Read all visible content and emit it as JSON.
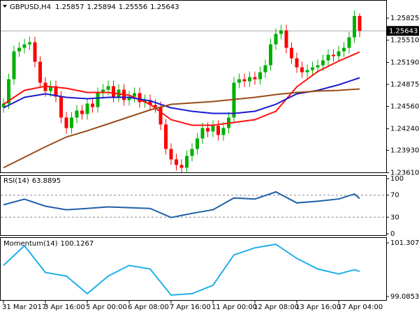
{
  "chart_data": [
    {
      "type": "candlestick",
      "title": "GBPUSD,H4",
      "categories": [
        "31 Mar 2017",
        null,
        null,
        null,
        null,
        null,
        null,
        null,
        "3 Apr 16:00",
        null,
        null,
        null,
        null,
        null,
        null,
        null,
        "5 Apr 00:00",
        null,
        null,
        null,
        null,
        null,
        null,
        null,
        "6 Apr 08:00",
        null,
        null,
        null,
        null,
        null,
        null,
        null,
        "7 Apr 16:00",
        null,
        null,
        null,
        null,
        null,
        null,
        null,
        "11 Apr 00:00",
        null,
        null,
        null,
        null,
        null,
        null,
        null,
        "12 Apr 08:00",
        null,
        null,
        null,
        null,
        null,
        null,
        null,
        "13 Apr 16:00",
        null,
        null,
        null,
        null,
        null,
        null,
        null,
        "17 Apr 04:00",
        null,
        null,
        null,
        null
      ],
      "open": [
        1.2455,
        1.246,
        1.2495,
        1.2535,
        1.254,
        1.2545,
        1.2548,
        1.252,
        1.249,
        1.2478,
        1.2485,
        1.247,
        1.244,
        1.2425,
        1.244,
        1.245,
        1.2445,
        1.246,
        1.2455,
        1.2475,
        1.248,
        1.2485,
        1.247,
        1.248,
        1.2465,
        1.247,
        1.2475,
        1.2462,
        1.2465,
        1.2458,
        1.2455,
        1.243,
        1.2395,
        1.238,
        1.2372,
        1.2368,
        1.2385,
        1.2395,
        1.241,
        1.2425,
        1.242,
        1.2428,
        1.2415,
        1.2425,
        1.244,
        1.249,
        1.2495,
        1.2492,
        1.2498,
        1.2495,
        1.2505,
        1.2515,
        1.2545,
        1.256,
        1.2565,
        1.254,
        1.2525,
        1.2512,
        1.2505,
        1.2508,
        1.2512,
        1.2515,
        1.2522,
        1.253,
        1.2528,
        1.2535,
        1.254,
        1.2555,
        1.25857
      ],
      "high": [
        1.2468,
        1.2503,
        1.2543,
        1.2548,
        1.2553,
        1.2556,
        1.2556,
        1.2528,
        1.2498,
        1.2493,
        1.2493,
        1.2478,
        1.2448,
        1.2448,
        1.2458,
        1.2458,
        1.2468,
        1.2468,
        1.2483,
        1.2488,
        1.2493,
        1.2493,
        1.2488,
        1.2488,
        1.2478,
        1.2483,
        1.2483,
        1.2473,
        1.2473,
        1.2466,
        1.2463,
        1.2438,
        1.2403,
        1.2388,
        1.238,
        1.2393,
        1.2403,
        1.2418,
        1.2433,
        1.2433,
        1.2436,
        1.2436,
        1.2433,
        1.2448,
        1.2498,
        1.2503,
        1.2503,
        1.2506,
        1.2506,
        1.2513,
        1.2523,
        1.2553,
        1.2568,
        1.2573,
        1.2573,
        1.2548,
        1.2533,
        1.252,
        1.2516,
        1.252,
        1.2523,
        1.253,
        1.2538,
        1.2538,
        1.2543,
        1.2548,
        1.2563,
        1.2594,
        1.25894
      ],
      "low": [
        1.2447,
        1.2452,
        1.2487,
        1.2527,
        1.2532,
        1.2537,
        1.2512,
        1.2482,
        1.247,
        1.247,
        1.2462,
        1.2432,
        1.2417,
        1.2417,
        1.2432,
        1.2437,
        1.2437,
        1.2447,
        1.2447,
        1.2467,
        1.2472,
        1.2462,
        1.2462,
        1.2457,
        1.2457,
        1.2462,
        1.2454,
        1.2454,
        1.245,
        1.2447,
        1.2422,
        1.2387,
        1.2372,
        1.2364,
        1.236,
        1.236,
        1.2377,
        1.2387,
        1.2402,
        1.2412,
        1.2412,
        1.2407,
        1.2407,
        1.2417,
        1.2432,
        1.2482,
        1.2484,
        1.2484,
        1.2487,
        1.2487,
        1.2497,
        1.2507,
        1.2537,
        1.2552,
        1.2532,
        1.2517,
        1.2504,
        1.2497,
        1.2497,
        1.25,
        1.2504,
        1.2507,
        1.2514,
        1.252,
        1.252,
        1.2527,
        1.2532,
        1.2547,
        1.25556
      ],
      "close": [
        1.246,
        1.2495,
        1.2535,
        1.254,
        1.2545,
        1.2548,
        1.252,
        1.249,
        1.2478,
        1.2485,
        1.247,
        1.244,
        1.2425,
        1.244,
        1.245,
        1.2445,
        1.246,
        1.2455,
        1.2475,
        1.248,
        1.2485,
        1.247,
        1.248,
        1.2465,
        1.247,
        1.2475,
        1.2462,
        1.2465,
        1.2458,
        1.2455,
        1.243,
        1.2395,
        1.238,
        1.2372,
        1.2368,
        1.2385,
        1.2395,
        1.241,
        1.2425,
        1.242,
        1.2428,
        1.2415,
        1.2425,
        1.244,
        1.249,
        1.2495,
        1.2492,
        1.2498,
        1.2495,
        1.2505,
        1.2515,
        1.2545,
        1.256,
        1.2565,
        1.254,
        1.2525,
        1.2512,
        1.2505,
        1.2508,
        1.2512,
        1.2515,
        1.2522,
        1.253,
        1.2528,
        1.2535,
        1.254,
        1.2555,
        1.25857,
        1.25643
      ],
      "up_color": "#00b000",
      "down_color": "#ff0000",
      "series": [
        {
          "color": "#ff1010",
          "x": [
            0,
            4,
            8,
            12,
            16,
            20,
            24,
            28,
            32,
            36,
            40,
            44,
            48,
            52,
            56,
            60,
            64,
            68
          ],
          "values": [
            1.2459,
            1.2479,
            1.2485,
            1.2482,
            1.2476,
            1.2476,
            1.2472,
            1.2459,
            1.2437,
            1.2429,
            1.2429,
            1.2433,
            1.2437,
            1.2449,
            1.2484,
            1.2506,
            1.2521,
            1.2534
          ]
        },
        {
          "color": "#1a1ad0",
          "x": [
            0,
            4,
            8,
            12,
            16,
            20,
            24,
            28,
            32,
            36,
            40,
            44,
            48,
            52,
            56,
            60,
            64,
            68
          ],
          "values": [
            1.2454,
            1.2469,
            1.2474,
            1.2469,
            1.2467,
            1.2469,
            1.2469,
            1.2464,
            1.2454,
            1.2449,
            1.2446,
            1.2446,
            1.2449,
            1.2459,
            1.2474,
            1.2479,
            1.2487,
            1.2497
          ]
        },
        {
          "color": "#9a4a1a",
          "x": [
            0,
            4,
            8,
            12,
            16,
            20,
            24,
            28,
            32,
            36,
            40,
            44,
            48,
            52,
            56,
            60,
            64,
            68
          ],
          "values": [
            1.2368,
            1.2383,
            1.2398,
            1.2412,
            1.2421,
            1.2431,
            1.2441,
            1.2451,
            1.2459,
            1.2461,
            1.2463,
            1.2466,
            1.2469,
            1.2473,
            1.2476,
            1.2478,
            1.2479,
            1.2481
          ]
        }
      ],
      "ylim": [
        1.23604,
        1.26076
      ],
      "yticks": [
        {
          "value": 1.2361,
          "label": "1.23610"
        },
        {
          "value": 1.2393,
          "label": "1.23930"
        },
        {
          "value": 1.2424,
          "label": "1.24240"
        },
        {
          "value": 1.2456,
          "label": "1.24560"
        },
        1.24875,
        {
          "value": 1.2519,
          "label": "1.25190"
        },
        {
          "value": 1.2551,
          "label": "1.25510"
        },
        1.25825
      ]
    },
    {
      "type": "line",
      "title": "RSI(14)",
      "series": [
        {
          "color": "#2060a8",
          "x": [
            0,
            4,
            8,
            12,
            16,
            20,
            24,
            28,
            32,
            36,
            40,
            44,
            48,
            52,
            56,
            60,
            64,
            67,
            68
          ],
          "values": [
            52.6,
            62.8,
            50,
            43.6,
            46,
            48.7,
            47.4,
            46,
            29.5,
            37,
            43.6,
            65,
            63,
            76,
            56,
            59,
            63,
            72,
            63.8895
          ]
        }
      ],
      "ylim": [
        -3.8,
        105.1
      ],
      "yticks": [
        0,
        30,
        70,
        100
      ],
      "levels": [
        30,
        70
      ]
    },
    {
      "type": "line",
      "title": "Momentum(14)",
      "series": [
        {
          "color": "#20b0e8",
          "x": [
            0,
            4,
            8,
            12,
            16,
            20,
            24,
            28,
            32,
            36,
            40,
            44,
            48,
            52,
            56,
            60,
            64,
            67,
            68
          ],
          "values": [
            100.372,
            101.19,
            100.08,
            99.933,
            99.202,
            99.933,
            100.372,
            100.226,
            99.144,
            99.202,
            99.553,
            100.81,
            101.103,
            101.249,
            100.664,
            100.226,
            100.021,
            100.196,
            100.1267
          ]
        }
      ],
      "ylim": [
        98.9099,
        101.5124
      ],
      "yticks": [
        99.0853,
        101.3077
      ]
    }
  ]
}
